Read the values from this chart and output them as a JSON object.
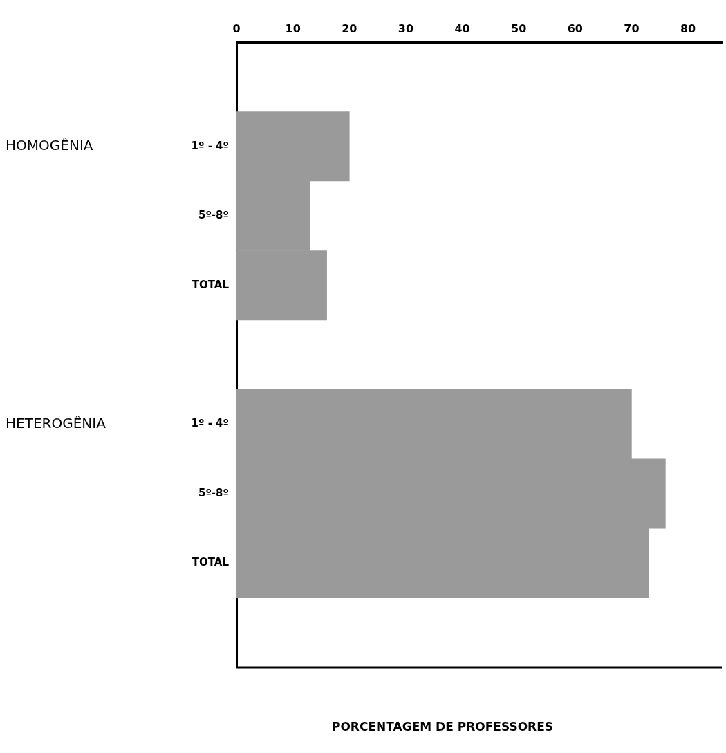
{
  "chart_data": {
    "type": "bar",
    "orientation": "horizontal",
    "xlabel": "PORCENTAGEM DE PROFESSORES",
    "categories": [
      null,
      "1º - 4º",
      "5º-8º",
      "TOTAL",
      null,
      "1º - 4º",
      "5º-8º",
      "TOTAL",
      null
    ],
    "values": [
      null,
      20,
      13,
      16,
      null,
      70,
      76,
      73,
      null
    ],
    "color": "#9a9a9a",
    "xlim": [
      0,
      86
    ],
    "xticks": [
      0,
      10,
      20,
      30,
      40,
      50,
      60,
      70,
      80
    ],
    "grid": false,
    "legend": false,
    "annotations": [
      "HOMOGÊNIA",
      "HETEROGÊNIA"
    ]
  }
}
